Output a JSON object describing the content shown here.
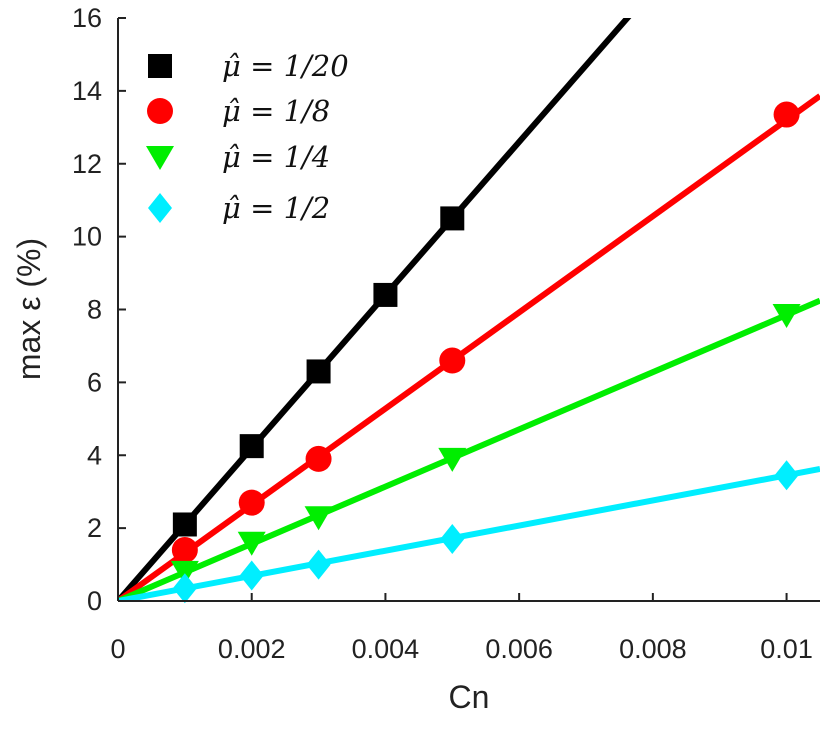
{
  "chart_data": {
    "type": "line",
    "xlabel": "Cn",
    "ylabel": "max ε (%)",
    "xlim": [
      0,
      0.0105
    ],
    "ylim": [
      0,
      16
    ],
    "xticks": [
      0,
      0.002,
      0.004,
      0.006,
      0.008,
      0.01
    ],
    "xtick_labels": [
      "0",
      "0.002",
      "0.004",
      "0.006",
      "0.008",
      "0.01"
    ],
    "yticks": [
      0,
      2,
      4,
      6,
      8,
      10,
      12,
      14,
      16
    ],
    "ytick_labels": [
      "0",
      "2",
      "4",
      "6",
      "8",
      "10",
      "12",
      "14",
      "16"
    ],
    "grid": false,
    "legend_position": "top-left",
    "series": [
      {
        "name": "μ̂ = 1/20",
        "color": "#000000",
        "marker": "square",
        "x": [
          0.001,
          0.002,
          0.003,
          0.004,
          0.005
        ],
        "y": [
          2.1,
          4.25,
          6.3,
          8.4,
          10.5
        ],
        "fit_slope": 2100
      },
      {
        "name": "μ̂ = 1/8",
        "color": "#ff0000",
        "marker": "circle",
        "x": [
          0.001,
          0.002,
          0.003,
          0.005,
          0.01
        ],
        "y": [
          1.4,
          2.7,
          3.9,
          6.6,
          13.35
        ],
        "fit_slope": 1320
      },
      {
        "name": "μ̂ = 1/4",
        "color": "#00ee00",
        "marker": "triangle-down",
        "x": [
          0.001,
          0.002,
          0.003,
          0.005,
          0.01
        ],
        "y": [
          0.8,
          1.6,
          2.3,
          3.9,
          7.85
        ],
        "fit_slope": 785
      },
      {
        "name": "μ̂ = 1/2",
        "color": "#00eeff",
        "marker": "diamond",
        "x": [
          0.001,
          0.002,
          0.003,
          0.005,
          0.01
        ],
        "y": [
          0.35,
          0.7,
          1.0,
          1.7,
          3.45
        ],
        "fit_slope": 345
      }
    ]
  }
}
